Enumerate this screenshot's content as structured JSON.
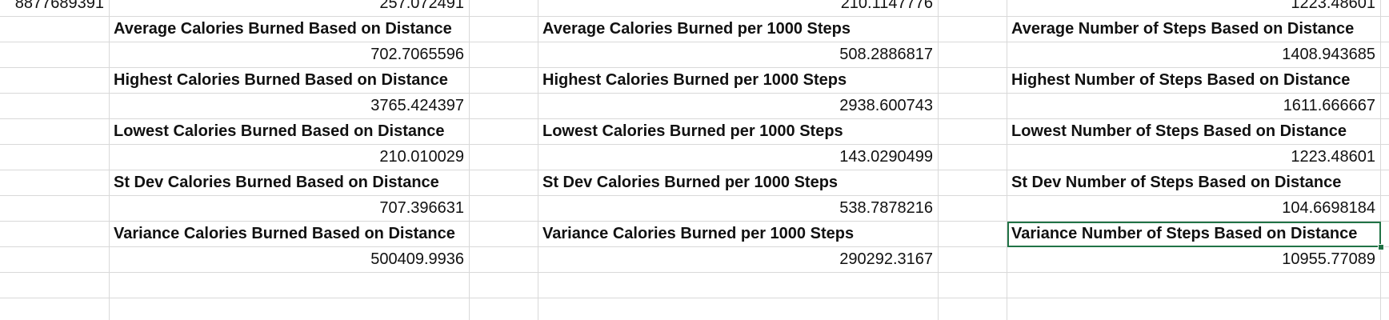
{
  "rows": [
    [
      "8877689391",
      "257.072491",
      "",
      "210.1147776",
      "",
      "1223.48601",
      ""
    ],
    [
      "",
      "Average Calories Burned Based on Distance",
      "",
      "Average Calories Burned per 1000 Steps",
      "",
      "Average Number of Steps Based on Distance",
      ""
    ],
    [
      "",
      "702.7065596",
      "",
      "508.2886817",
      "",
      "1408.943685",
      ""
    ],
    [
      "",
      "Highest Calories Burned Based on Distance",
      "",
      "Highest Calories Burned per 1000 Steps",
      "",
      "Highest Number of Steps Based on Distance",
      ""
    ],
    [
      "",
      "3765.424397",
      "",
      "2938.600743",
      "",
      "1611.666667",
      ""
    ],
    [
      "",
      "Lowest Calories Burned Based on Distance",
      "",
      "Lowest Calories Burned per 1000 Steps",
      "",
      "Lowest Number of Steps Based on Distance",
      ""
    ],
    [
      "",
      "210.010029",
      "",
      "143.0290499",
      "",
      "1223.48601",
      ""
    ],
    [
      "",
      "St Dev Calories Burned Based on Distance",
      "",
      "St Dev Calories Burned per 1000 Steps",
      "",
      "St Dev Number of Steps Based on Distance",
      ""
    ],
    [
      "",
      "707.396631",
      "",
      "538.7878216",
      "",
      "104.6698184",
      ""
    ],
    [
      "",
      "Variance Calories Burned Based on Distance",
      "",
      "Variance Calories Burned per 1000 Steps",
      "",
      "Variance Number of Steps Based on Distance",
      ""
    ],
    [
      "",
      "500409.9936",
      "",
      "290292.3167",
      "",
      "10955.77089",
      ""
    ],
    [
      "",
      "",
      "",
      "",
      "",
      "",
      ""
    ],
    [
      "",
      "",
      "",
      "",
      "",
      "",
      ""
    ]
  ],
  "selected_cell": "Variance Number of Steps Based on Distance",
  "colors": {
    "gridline": "#d9d9d9",
    "selection": "#217346",
    "text": "#111111"
  }
}
